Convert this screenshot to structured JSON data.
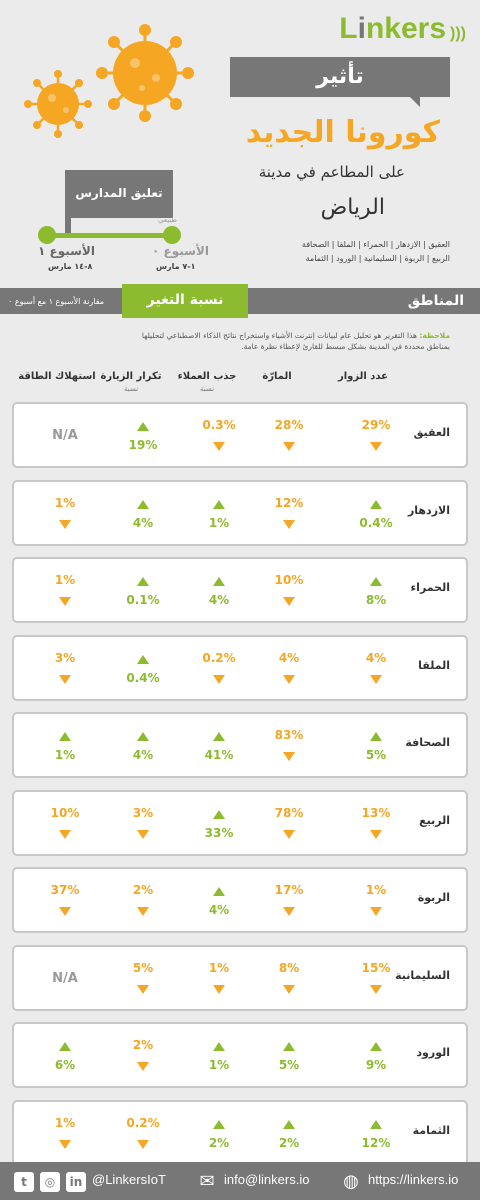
{
  "header": {
    "logo_l": "L",
    "logo_rest": "nkers",
    "title_banner": "تأثير",
    "title_main": "كورونا الجديد",
    "subtitle": "على المطاعم في مدينة",
    "city": "الرياض",
    "districts_line1": "العقيق | الازدهار | الحمراء | الملقا | الصحافة",
    "districts_line2": "الربيع | الربوة | السليمانية | الورود | الثمامة"
  },
  "timeline": {
    "callout": "تعليق المدارس",
    "normal_label": "طبيعي",
    "week1_label": "الأسبوع ١",
    "week1_dates": "٨-١٤ مارس",
    "week0_label": "الأسبوع ٠",
    "week0_dates": "١-٧ مارس"
  },
  "section": {
    "regions": "المناطق",
    "change": "نسبة التغير",
    "compare": "مقارنة الأسبوع ١ مع أسبوع ٠"
  },
  "note": {
    "label": "ملاحظة:",
    "text": "هذا التقرير هو تحليل عام لبيانات إنترنت الأشياء واستخراج نتائج الذكاء الاصطناعي لتحليلها بمناطق محددة في المدينة بشكل مبسط للقارئ لإعطاء نظرة عامة."
  },
  "columns": {
    "visitors": "عدد الزوار",
    "passers": "المارّة",
    "attraction": "جذب العملاء",
    "attraction_sub": "نسبة",
    "repeat": "تكرار الزيارة",
    "repeat_sub": "نسبة",
    "energy": "استهلاك الطاقة"
  },
  "rows": [
    {
      "name": "العقيق",
      "visitors": {
        "v": "29%",
        "d": "down"
      },
      "passers": {
        "v": "28%",
        "d": "down"
      },
      "attraction": {
        "v": "0.3%",
        "d": "down"
      },
      "repeat": {
        "v": "19%",
        "d": "up"
      },
      "energy": {
        "v": "N/A",
        "d": "na"
      }
    },
    {
      "name": "الازدهار",
      "visitors": {
        "v": "0.4%",
        "d": "up"
      },
      "passers": {
        "v": "12%",
        "d": "down"
      },
      "attraction": {
        "v": "1%",
        "d": "up"
      },
      "repeat": {
        "v": "4%",
        "d": "up"
      },
      "energy": {
        "v": "1%",
        "d": "down"
      }
    },
    {
      "name": "الحمراء",
      "visitors": {
        "v": "8%",
        "d": "up"
      },
      "passers": {
        "v": "10%",
        "d": "down"
      },
      "attraction": {
        "v": "4%",
        "d": "up"
      },
      "repeat": {
        "v": "0.1%",
        "d": "up"
      },
      "energy": {
        "v": "1%",
        "d": "down"
      }
    },
    {
      "name": "الملقا",
      "visitors": {
        "v": "4%",
        "d": "down"
      },
      "passers": {
        "v": "4%",
        "d": "down"
      },
      "attraction": {
        "v": "0.2%",
        "d": "down"
      },
      "repeat": {
        "v": "0.4%",
        "d": "up"
      },
      "energy": {
        "v": "3%",
        "d": "down"
      }
    },
    {
      "name": "الصحافة",
      "visitors": {
        "v": "5%",
        "d": "up"
      },
      "passers": {
        "v": "83%",
        "d": "down"
      },
      "attraction": {
        "v": "41%",
        "d": "up"
      },
      "repeat": {
        "v": "4%",
        "d": "up"
      },
      "energy": {
        "v": "1%",
        "d": "up"
      }
    },
    {
      "name": "الربيع",
      "visitors": {
        "v": "13%",
        "d": "down"
      },
      "passers": {
        "v": "78%",
        "d": "down"
      },
      "attraction": {
        "v": "33%",
        "d": "up"
      },
      "repeat": {
        "v": "3%",
        "d": "down"
      },
      "energy": {
        "v": "10%",
        "d": "down"
      }
    },
    {
      "name": "الربوة",
      "visitors": {
        "v": "1%",
        "d": "down"
      },
      "passers": {
        "v": "17%",
        "d": "down"
      },
      "attraction": {
        "v": "4%",
        "d": "up"
      },
      "repeat": {
        "v": "2%",
        "d": "down"
      },
      "energy": {
        "v": "37%",
        "d": "down"
      }
    },
    {
      "name": "السليمانية",
      "visitors": {
        "v": "15%",
        "d": "down"
      },
      "passers": {
        "v": "8%",
        "d": "down"
      },
      "attraction": {
        "v": "1%",
        "d": "down"
      },
      "repeat": {
        "v": "5%",
        "d": "down"
      },
      "energy": {
        "v": "N/A",
        "d": "na"
      }
    },
    {
      "name": "الورود",
      "visitors": {
        "v": "9%",
        "d": "up"
      },
      "passers": {
        "v": "5%",
        "d": "up"
      },
      "attraction": {
        "v": "1%",
        "d": "up"
      },
      "repeat": {
        "v": "2%",
        "d": "down"
      },
      "energy": {
        "v": "6%",
        "d": "up"
      }
    },
    {
      "name": "الثمامة",
      "visitors": {
        "v": "12%",
        "d": "up"
      },
      "passers": {
        "v": "2%",
        "d": "up"
      },
      "attraction": {
        "v": "2%",
        "d": "up"
      },
      "repeat": {
        "v": "0.2%",
        "d": "down"
      },
      "energy": {
        "v": "1%",
        "d": "down"
      }
    }
  ],
  "footer": {
    "social_handle": "@LinkersIoT",
    "email": "info@linkers.io",
    "website": "https://linkers.io",
    "icons": [
      "twitter-icon",
      "instagram-icon",
      "linkedin-icon",
      "mail-icon",
      "globe-icon"
    ]
  },
  "colors": {
    "green": "#8dbb2f",
    "orange": "#f5a623",
    "gray": "#777777"
  }
}
